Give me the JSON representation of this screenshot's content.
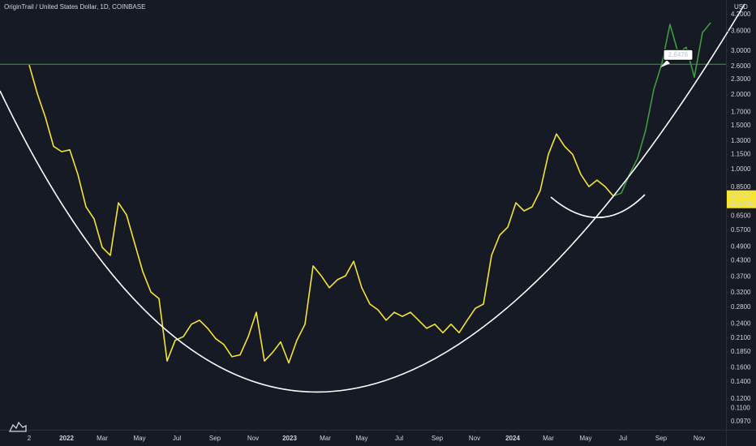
{
  "chart_data": {
    "type": "line",
    "title": "OriginTrail / United States Dollar, 1D, COINBASE",
    "currency": "USD",
    "log_scale": true,
    "ylim": [
      0.09,
      4.8
    ],
    "yticks": [
      {
        "value": 4.2,
        "label": "4.2000"
      },
      {
        "value": 3.6,
        "label": "3.6000"
      },
      {
        "value": 3.0,
        "label": "3.0000"
      },
      {
        "value": 2.6,
        "label": "2.6000"
      },
      {
        "value": 2.3,
        "label": "2.3000"
      },
      {
        "value": 2.0,
        "label": "2.0000"
      },
      {
        "value": 1.7,
        "label": "1.7000"
      },
      {
        "value": 1.5,
        "label": "1.5000"
      },
      {
        "value": 1.3,
        "label": "1.3000"
      },
      {
        "value": 1.15,
        "label": "1.1500"
      },
      {
        "value": 1.0,
        "label": "1.0000"
      },
      {
        "value": 0.85,
        "label": "0.8500"
      },
      {
        "value": 0.65,
        "label": "0.6500"
      },
      {
        "value": 0.57,
        "label": "0.5700"
      },
      {
        "value": 0.49,
        "label": "0.4900"
      },
      {
        "value": 0.43,
        "label": "0.4300"
      },
      {
        "value": 0.37,
        "label": "0.3700"
      },
      {
        "value": 0.32,
        "label": "0.3200"
      },
      {
        "value": 0.28,
        "label": "0.2800"
      },
      {
        "value": 0.24,
        "label": "0.2400"
      },
      {
        "value": 0.21,
        "label": "0.2100"
      },
      {
        "value": 0.185,
        "label": "0.1850"
      },
      {
        "value": 0.16,
        "label": "0.1600"
      },
      {
        "value": 0.14,
        "label": "0.1400"
      },
      {
        "value": 0.12,
        "label": "0.1200"
      },
      {
        "value": 0.11,
        "label": "0.1100"
      },
      {
        "value": 0.097,
        "label": "0.0970"
      }
    ],
    "xlim": [
      -3.6,
      85.9
    ],
    "xticks": [
      {
        "value": 0,
        "label": "2"
      },
      {
        "value": 4.6,
        "label": "2022"
      },
      {
        "value": 9,
        "label": "Mar"
      },
      {
        "value": 13.6,
        "label": "May"
      },
      {
        "value": 18.2,
        "label": "Jul"
      },
      {
        "value": 22.9,
        "label": "Sep"
      },
      {
        "value": 27.6,
        "label": "Nov"
      },
      {
        "value": 32.1,
        "label": "2023"
      },
      {
        "value": 36.5,
        "label": "Mar"
      },
      {
        "value": 41,
        "label": "May"
      },
      {
        "value": 45.6,
        "label": "Jul"
      },
      {
        "value": 50.3,
        "label": "Sep"
      },
      {
        "value": 54.9,
        "label": "Nov"
      },
      {
        "value": 59.6,
        "label": "2024"
      },
      {
        "value": 64,
        "label": "Mar"
      },
      {
        "value": 68.6,
        "label": "May"
      },
      {
        "value": 73.2,
        "label": "Jul"
      },
      {
        "value": 77.9,
        "label": "Sep"
      },
      {
        "value": 82.6,
        "label": "Nov"
      }
    ],
    "series": [
      {
        "color": "#f5e531",
        "values": [
          2.63,
          2.02,
          1.62,
          1.24,
          1.18,
          1.2,
          0.956,
          0.708,
          0.633,
          0.487,
          0.452,
          0.735,
          0.657,
          0.505,
          0.389,
          0.322,
          0.303,
          0.17,
          0.206,
          0.213,
          0.239,
          0.248,
          0.23,
          0.209,
          0.198,
          0.177,
          0.18,
          0.213,
          0.267,
          0.17,
          0.184,
          0.203,
          0.167,
          0.206,
          0.239,
          0.41,
          0.374,
          0.335,
          0.361,
          0.374,
          0.428,
          0.335,
          0.288,
          0.273,
          0.248,
          0.267,
          0.257,
          0.267,
          0.248,
          0.23,
          0.239,
          0.221,
          0.239,
          0.221,
          0.248,
          0.277,
          0.288,
          0.452,
          0.545,
          0.587,
          0.735,
          0.682,
          0.708,
          0.823,
          1.15,
          1.39,
          1.24,
          1.15,
          0.956,
          0.854,
          0.907,
          0.854,
          0.783,
          null,
          null,
          null,
          null,
          null,
          null,
          null,
          null,
          null,
          null,
          null,
          null
        ]
      },
      {
        "color": "#3f9b3f",
        "values": [
          null,
          null,
          null,
          null,
          null,
          null,
          null,
          null,
          null,
          null,
          null,
          null,
          null,
          null,
          null,
          null,
          null,
          null,
          null,
          null,
          null,
          null,
          null,
          null,
          null,
          null,
          null,
          null,
          null,
          null,
          null,
          null,
          null,
          null,
          null,
          null,
          null,
          null,
          null,
          null,
          null,
          null,
          null,
          null,
          null,
          null,
          null,
          null,
          null,
          null,
          null,
          null,
          null,
          null,
          null,
          null,
          null,
          null,
          null,
          null,
          null,
          null,
          null,
          null,
          null,
          null,
          null,
          null,
          null,
          null,
          null,
          null,
          0.783,
          0.804,
          0.956,
          1.11,
          1.44,
          2.1,
          2.67,
          3.83,
          2.94,
          3.1,
          2.35,
          3.55,
          3.89
        ]
      }
    ],
    "price_line": 2.6476,
    "last_price": 0.7827,
    "countdown": "22:10:52"
  }
}
